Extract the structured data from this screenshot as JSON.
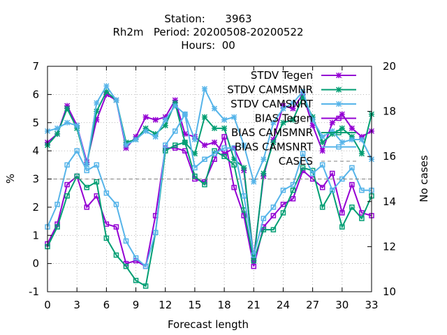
{
  "chart_data": {
    "type": "line",
    "title": [
      "Station:      3963",
      "Rh2m   Period: 20200508-20200522",
      "Hours:  00"
    ],
    "xlabel": "Forecast length",
    "ylabel": "%",
    "y2label": "No cases",
    "xlim": [
      0,
      33
    ],
    "ylim": [
      -1,
      7
    ],
    "y2lim": [
      10,
      20
    ],
    "xticks": [
      0,
      3,
      6,
      9,
      12,
      15,
      18,
      21,
      24,
      27,
      30,
      33
    ],
    "yticks": [
      -1,
      0,
      1,
      2,
      3,
      4,
      5,
      6,
      7
    ],
    "y2ticks": [
      10,
      12,
      14,
      16,
      18,
      20
    ],
    "x": [
      0,
      1,
      2,
      3,
      4,
      5,
      6,
      7,
      8,
      9,
      10,
      11,
      12,
      13,
      14,
      15,
      16,
      17,
      18,
      19,
      20,
      21,
      22,
      23,
      24,
      25,
      26,
      27,
      28,
      29,
      30,
      31,
      32,
      33
    ],
    "legend_position": "top-right",
    "series": [
      {
        "name": "STDV Tegen",
        "color": "#9400d3",
        "marker": "x",
        "axis": "y",
        "values": [
          4.3,
          4.6,
          5.6,
          4.9,
          3.6,
          5.1,
          6.0,
          5.8,
          4.1,
          4.5,
          5.2,
          5.1,
          5.2,
          5.8,
          4.6,
          4.5,
          4.2,
          4.3,
          3.9,
          4.1,
          3.3,
          0.2,
          3.1,
          4.4,
          5.6,
          5.5,
          6.0,
          4.9,
          4.0,
          5.0,
          5.3,
          4.8,
          4.5,
          4.7
        ]
      },
      {
        "name": "STDV CAMSMNR",
        "color": "#009e73",
        "marker": "x",
        "axis": "y",
        "values": [
          4.2,
          4.6,
          5.5,
          4.8,
          3.5,
          5.4,
          6.1,
          5.8,
          4.3,
          4.4,
          4.8,
          4.6,
          4.9,
          5.7,
          4.3,
          3.9,
          5.2,
          4.8,
          4.8,
          3.7,
          3.4,
          0.1,
          3.2,
          4.3,
          5.0,
          5.1,
          5.9,
          5.2,
          4.3,
          4.6,
          4.8,
          4.5,
          3.9,
          5.3
        ]
      },
      {
        "name": "STDV CAMSNRT",
        "color": "#56b4e9",
        "marker": "x",
        "axis": "y",
        "values": [
          4.7,
          4.8,
          5.0,
          4.9,
          3.5,
          5.7,
          6.3,
          5.8,
          4.2,
          4.4,
          4.7,
          4.5,
          5.1,
          5.6,
          5.3,
          4.4,
          6.2,
          5.5,
          5.1,
          5.2,
          4.2,
          2.9,
          3.7,
          5.0,
          5.5,
          5.7,
          6.1,
          5.1,
          4.5,
          4.7,
          4.3,
          4.4,
          4.4,
          3.7
        ]
      },
      {
        "name": "BIAS Tegen",
        "color": "#9400d3",
        "marker": "square",
        "axis": "y",
        "values": [
          0.7,
          1.4,
          2.8,
          3.1,
          2.0,
          2.4,
          1.4,
          1.3,
          0.0,
          0.1,
          -0.1,
          1.7,
          4.1,
          4.1,
          4.0,
          3.0,
          2.9,
          3.7,
          4.5,
          2.7,
          1.7,
          -0.1,
          1.3,
          1.7,
          2.1,
          2.3,
          3.3,
          3.0,
          2.7,
          3.2,
          1.8,
          2.8,
          1.8,
          1.7
        ]
      },
      {
        "name": "BIAS CAMSMNR",
        "color": "#009e73",
        "marker": "square",
        "axis": "y",
        "values": [
          0.6,
          1.3,
          2.4,
          3.1,
          2.7,
          2.9,
          0.9,
          0.3,
          -0.1,
          -0.6,
          -0.8,
          1.1,
          4.0,
          4.2,
          4.3,
          3.1,
          2.8,
          4.0,
          3.8,
          3.5,
          1.9,
          0.1,
          1.2,
          1.2,
          1.8,
          2.6,
          3.4,
          3.3,
          2.0,
          2.6,
          1.3,
          2.0,
          1.6,
          2.4
        ]
      },
      {
        "name": "BIAS CAMSNRT",
        "color": "#56b4e9",
        "marker": "square",
        "axis": "y",
        "values": [
          1.3,
          2.1,
          3.5,
          4.0,
          3.3,
          3.5,
          2.5,
          2.1,
          0.8,
          0.2,
          -0.1,
          1.1,
          4.2,
          4.7,
          5.3,
          3.4,
          3.7,
          3.9,
          4.1,
          4.1,
          2.4,
          0.3,
          1.6,
          2.0,
          2.6,
          2.8,
          3.9,
          3.2,
          3.5,
          2.6,
          3.0,
          3.4,
          2.6,
          2.6
        ]
      },
      {
        "name": "CASES",
        "color": "#808080",
        "marker": "none",
        "axis": "y2",
        "dashed": true,
        "values": [
          15,
          15,
          15,
          15,
          15,
          15,
          15,
          15,
          15,
          15,
          15,
          15,
          15,
          15,
          15,
          15,
          15,
          15,
          15,
          15,
          15,
          15,
          15,
          15,
          15,
          15,
          15,
          15,
          15,
          15,
          15,
          15,
          15,
          15
        ]
      }
    ]
  }
}
